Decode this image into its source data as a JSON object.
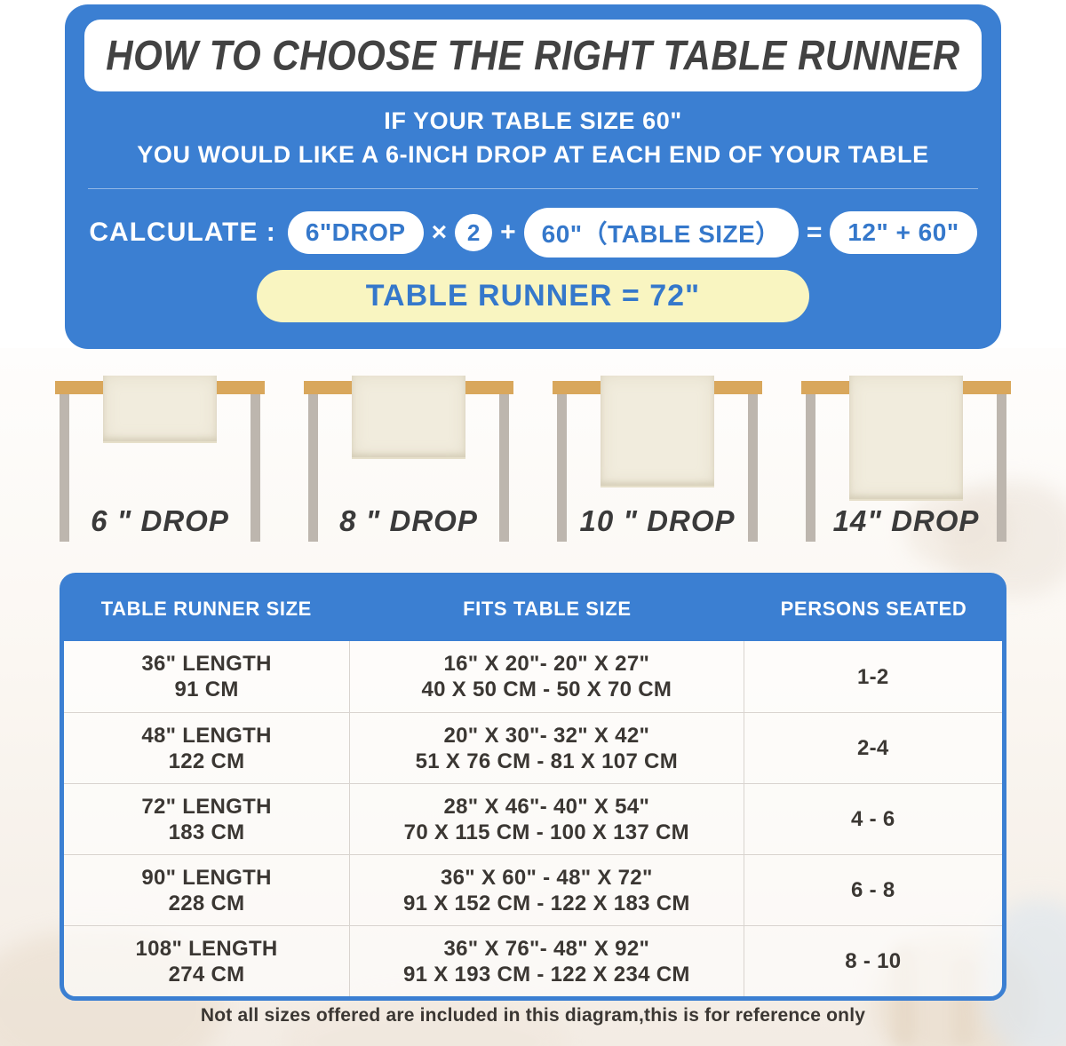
{
  "header": {
    "title": "HOW TO CHOOSE THE RIGHT TABLE RUNNER",
    "subtitle_line1": "IF YOUR TABLE SIZE 60\"",
    "subtitle_line2": "YOU WOULD LIKE A 6-INCH DROP AT EACH END OF YOUR TABLE",
    "calc": {
      "label": "CALCULATE :",
      "drop_pill": "6\"DROP",
      "multiply_sign": "×",
      "multiplier": "2",
      "plus_sign": "+",
      "table_size_pill": "60\"（TABLE SIZE）",
      "equals_sign": "=",
      "sum_pill": "12\" + 60\"",
      "result": "TABLE RUNNER = 72\""
    }
  },
  "drops": [
    {
      "label": "6 \" DROP"
    },
    {
      "label": "8 \" DROP"
    },
    {
      "label": "10 \" DROP"
    },
    {
      "label": "14\" DROP"
    }
  ],
  "size_table": {
    "headers": [
      "TABLE RUNNER SIZE",
      "FITS TABLE SIZE",
      "PERSONS SEATED"
    ],
    "rows": [
      {
        "runner_size_in": "36\" LENGTH",
        "runner_size_cm": "91 CM",
        "fits_in": "16\" X 20\"- 20\" X 27\"",
        "fits_cm": "40 X 50 CM - 50 X 70 CM",
        "persons": "1-2"
      },
      {
        "runner_size_in": "48\" LENGTH",
        "runner_size_cm": "122 CM",
        "fits_in": "20\" X 30\"- 32\" X 42\"",
        "fits_cm": "51 X 76 CM - 81 X 107 CM",
        "persons": "2-4"
      },
      {
        "runner_size_in": "72\" LENGTH",
        "runner_size_cm": "183 CM",
        "fits_in": "28\" X 46\"- 40\" X 54\"",
        "fits_cm": "70 X 115 CM - 100 X 137 CM",
        "persons": "4 - 6"
      },
      {
        "runner_size_in": "90\" LENGTH",
        "runner_size_cm": "228 CM",
        "fits_in": "36\" X 60\" - 48\" X 72\"",
        "fits_cm": "91 X 152 CM - 122 X 183 CM",
        "persons": "6 - 8"
      },
      {
        "runner_size_in": "108\" LENGTH",
        "runner_size_cm": "274 CM",
        "fits_in": "36\" X 76\"- 48\" X 92\"",
        "fits_cm": "91 X 193 CM - 122 X 234 CM",
        "persons": "8 - 10"
      }
    ]
  },
  "footer": {
    "note": "Not all sizes offered are included in this diagram,this is for reference only"
  },
  "colors": {
    "panel_blue": "#3b7fd2",
    "accent_yellow": "#f9f5c1",
    "pill_text_blue": "#3578cb",
    "tabletop_tan": "#d9a75c",
    "leg_gray": "#bdb6ae",
    "runner_cream": "#f1ecdd",
    "text_dark": "#3b3733"
  }
}
